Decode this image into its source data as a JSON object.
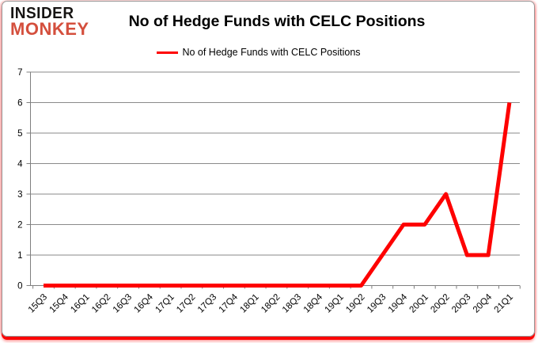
{
  "logo": {
    "line1": "INSIDER",
    "line2": "MONKEY"
  },
  "header": {
    "title": "No of Hedge Funds with CELC Positions"
  },
  "legend": {
    "label": "No of Hedge Funds with CELC Positions"
  },
  "chart_data": {
    "type": "line",
    "title": "No of Hedge Funds with CELC Positions",
    "categories": [
      "15Q3",
      "15Q4",
      "16Q1",
      "16Q2",
      "16Q3",
      "16Q4",
      "17Q1",
      "17Q2",
      "17Q3",
      "17Q4",
      "18Q1",
      "18Q2",
      "18Q3",
      "18Q4",
      "19Q1",
      "19Q2",
      "19Q3",
      "19Q4",
      "20Q1",
      "20Q2",
      "20Q3",
      "20Q4",
      "21Q1"
    ],
    "series": [
      {
        "name": "No of Hedge Funds with CELC Positions",
        "color": "#fe0000",
        "values": [
          0,
          0,
          0,
          0,
          0,
          0,
          0,
          0,
          0,
          0,
          0,
          0,
          0,
          0,
          0,
          0,
          1,
          2,
          2,
          3,
          1,
          1,
          6
        ]
      }
    ],
    "xlabel": "",
    "ylabel": "",
    "ylim": [
      0,
      7
    ],
    "yticks": [
      0,
      1,
      2,
      3,
      4,
      5,
      6,
      7
    ],
    "grid": true,
    "legend_position": "top",
    "colors": {
      "line": "#fe0000",
      "grid": "#8a8a8a",
      "axis": "#7f7f7f",
      "tick_label": "#000000",
      "title": "#000000",
      "logo_black": "#161413",
      "logo_red": "#d44f3d"
    }
  }
}
